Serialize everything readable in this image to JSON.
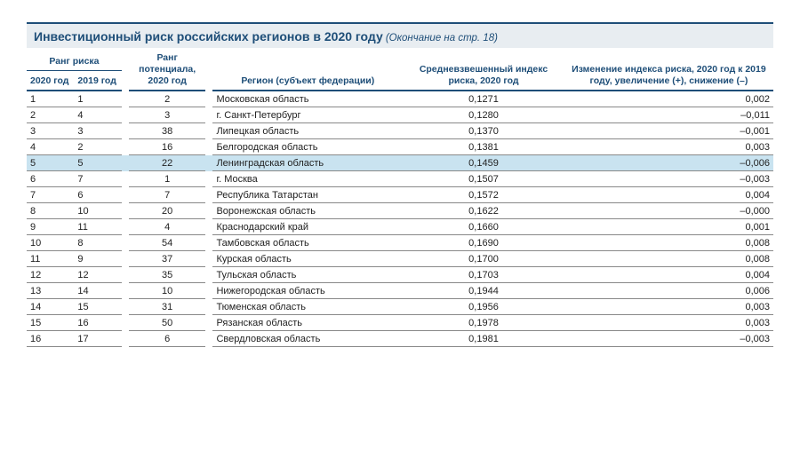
{
  "title": {
    "main": "Инвестиционный риск российских регионов в 2020 году",
    "note": "(Окончание на стр. 18)"
  },
  "colors": {
    "accent": "#1e4e78",
    "header_bg": "#e8edf1",
    "highlight_bg": "#c9e3f0",
    "row_border": "#888888",
    "text": "#222222"
  },
  "columns": {
    "risk_group": "Ранг риска",
    "rank_2020": "2020 год",
    "rank_2019": "2019 год",
    "potential": "Ранг потенциала, 2020 год",
    "region": "Регион (субъект федерации)",
    "index": "Средневзвешенный индекс риска, 2020 год",
    "change": "Изменение индекса риска, 2020 год к 2019 году, увеличение (+), снижение (–)"
  },
  "highlight_rank_2020": 5,
  "rows": [
    {
      "r2020": 1,
      "r2019": 1,
      "pot": 2,
      "region": "Московская область",
      "index": "0,1271",
      "change": "0,002"
    },
    {
      "r2020": 2,
      "r2019": 4,
      "pot": 3,
      "region": "г. Санкт-Петербург",
      "index": "0,1280",
      "change": "–0,011"
    },
    {
      "r2020": 3,
      "r2019": 3,
      "pot": 38,
      "region": "Липецкая область",
      "index": "0,1370",
      "change": "–0,001"
    },
    {
      "r2020": 4,
      "r2019": 2,
      "pot": 16,
      "region": "Белгородская область",
      "index": "0,1381",
      "change": "0,003"
    },
    {
      "r2020": 5,
      "r2019": 5,
      "pot": 22,
      "region": "Ленинградская область",
      "index": "0,1459",
      "change": "–0,006"
    },
    {
      "r2020": 6,
      "r2019": 7,
      "pot": 1,
      "region": "г. Москва",
      "index": "0,1507",
      "change": "–0,003"
    },
    {
      "r2020": 7,
      "r2019": 6,
      "pot": 7,
      "region": "Республика Татарстан",
      "index": "0,1572",
      "change": "0,004"
    },
    {
      "r2020": 8,
      "r2019": 10,
      "pot": 20,
      "region": "Воронежская область",
      "index": "0,1622",
      "change": "–0,000"
    },
    {
      "r2020": 9,
      "r2019": 11,
      "pot": 4,
      "region": "Краснодарский край",
      "index": "0,1660",
      "change": "0,001"
    },
    {
      "r2020": 10,
      "r2019": 8,
      "pot": 54,
      "region": "Тамбовская область",
      "index": "0,1690",
      "change": "0,008"
    },
    {
      "r2020": 11,
      "r2019": 9,
      "pot": 37,
      "region": "Курская область",
      "index": "0,1700",
      "change": "0,008"
    },
    {
      "r2020": 12,
      "r2019": 12,
      "pot": 35,
      "region": "Тульская область",
      "index": "0,1703",
      "change": "0,004"
    },
    {
      "r2020": 13,
      "r2019": 14,
      "pot": 10,
      "region": "Нижегородская область",
      "index": "0,1944",
      "change": "0,006"
    },
    {
      "r2020": 14,
      "r2019": 15,
      "pot": 31,
      "region": "Тюменская область",
      "index": "0,1956",
      "change": "0,003"
    },
    {
      "r2020": 15,
      "r2019": 16,
      "pot": 50,
      "region": "Рязанская область",
      "index": "0,1978",
      "change": "0,003"
    },
    {
      "r2020": 16,
      "r2019": 17,
      "pot": 6,
      "region": "Свердловская область",
      "index": "0,1981",
      "change": "–0,003"
    }
  ]
}
